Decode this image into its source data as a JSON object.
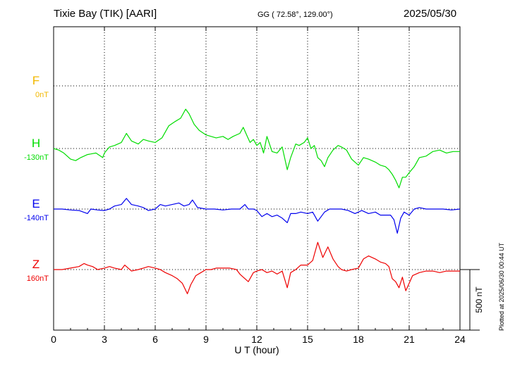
{
  "header": {
    "station": "Tixie Bay (TIK)  [AARI]",
    "coords": "GG ( 72.58°, 129.00°)",
    "date": "2025/05/30"
  },
  "plotted_note": "Plotted at 2025/06/30 00:44 UT",
  "colors": {
    "F": "#f2b800",
    "H": "#00dd00",
    "E": "#0000ee",
    "Z": "#ee0000",
    "axis": "#000000"
  },
  "chart_data": {
    "type": "line",
    "xlabel": "U T (hour)",
    "xlim": [
      0,
      24
    ],
    "x_ticks": [
      0,
      3,
      6,
      9,
      12,
      15,
      18,
      21,
      24
    ],
    "scale_bar": {
      "label": "500 nT",
      "value_nT": 500
    },
    "channels": [
      {
        "name": "F",
        "offset_label": "0nT",
        "color": "#f2b800",
        "values": []
      },
      {
        "name": "H",
        "offset_label": "-130nT",
        "color": "#00dd00",
        "points": [
          [
            0,
            0
          ],
          [
            0.3,
            -5
          ],
          [
            0.6,
            -15
          ],
          [
            1,
            -35
          ],
          [
            1.3,
            -40
          ],
          [
            1.6,
            -30
          ],
          [
            2,
            -20
          ],
          [
            2.5,
            -15
          ],
          [
            2.9,
            -30
          ],
          [
            3,
            -15
          ],
          [
            3.3,
            5
          ],
          [
            3.6,
            10
          ],
          [
            4,
            20
          ],
          [
            4.3,
            50
          ],
          [
            4.6,
            25
          ],
          [
            5,
            15
          ],
          [
            5.3,
            30
          ],
          [
            5.6,
            25
          ],
          [
            6,
            20
          ],
          [
            6.4,
            35
          ],
          [
            6.8,
            75
          ],
          [
            7.2,
            90
          ],
          [
            7.5,
            100
          ],
          [
            7.8,
            130
          ],
          [
            8,
            115
          ],
          [
            8.3,
            80
          ],
          [
            8.6,
            60
          ],
          [
            9,
            45
          ],
          [
            9.3,
            40
          ],
          [
            9.6,
            35
          ],
          [
            10,
            40
          ],
          [
            10.3,
            30
          ],
          [
            10.6,
            40
          ],
          [
            11,
            50
          ],
          [
            11.2,
            70
          ],
          [
            11.4,
            45
          ],
          [
            11.6,
            20
          ],
          [
            11.8,
            30
          ],
          [
            12,
            10
          ],
          [
            12.2,
            20
          ],
          [
            12.4,
            -15
          ],
          [
            12.6,
            40
          ],
          [
            12.9,
            -10
          ],
          [
            13.2,
            -15
          ],
          [
            13.5,
            5
          ],
          [
            13.8,
            -70
          ],
          [
            14,
            -30
          ],
          [
            14.3,
            15
          ],
          [
            14.5,
            10
          ],
          [
            14.8,
            20
          ],
          [
            15,
            35
          ],
          [
            15.2,
            0
          ],
          [
            15.4,
            10
          ],
          [
            15.6,
            -30
          ],
          [
            15.8,
            -40
          ],
          [
            16,
            -60
          ],
          [
            16.2,
            -30
          ],
          [
            16.5,
            -5
          ],
          [
            16.8,
            10
          ],
          [
            17,
            5
          ],
          [
            17.3,
            -5
          ],
          [
            17.6,
            -35
          ],
          [
            18,
            -55
          ],
          [
            18.3,
            -30
          ],
          [
            18.6,
            -35
          ],
          [
            19,
            -45
          ],
          [
            19.3,
            -55
          ],
          [
            19.6,
            -60
          ],
          [
            19.8,
            -70
          ],
          [
            20,
            -85
          ],
          [
            20.2,
            -105
          ],
          [
            20.4,
            -130
          ],
          [
            20.6,
            -95
          ],
          [
            20.8,
            -95
          ],
          [
            21,
            -80
          ],
          [
            21.3,
            -60
          ],
          [
            21.6,
            -30
          ],
          [
            22,
            -25
          ],
          [
            22.4,
            -10
          ],
          [
            22.8,
            -5
          ],
          [
            23.2,
            -15
          ],
          [
            23.6,
            -10
          ],
          [
            24,
            -10
          ]
        ]
      },
      {
        "name": "E",
        "offset_label": "-140nT",
        "color": "#0000ee",
        "points": [
          [
            0,
            0
          ],
          [
            0.5,
            0
          ],
          [
            1,
            -3
          ],
          [
            1.5,
            -5
          ],
          [
            2,
            -15
          ],
          [
            2.2,
            0
          ],
          [
            2.6,
            -3
          ],
          [
            3,
            -5
          ],
          [
            3.3,
            0
          ],
          [
            3.6,
            10
          ],
          [
            4,
            15
          ],
          [
            4.3,
            35
          ],
          [
            4.6,
            15
          ],
          [
            5,
            10
          ],
          [
            5.3,
            5
          ],
          [
            5.6,
            -5
          ],
          [
            6,
            0
          ],
          [
            6.3,
            15
          ],
          [
            6.6,
            10
          ],
          [
            7,
            15
          ],
          [
            7.4,
            20
          ],
          [
            7.7,
            10
          ],
          [
            8,
            15
          ],
          [
            8.2,
            30
          ],
          [
            8.5,
            5
          ],
          [
            9,
            0
          ],
          [
            9.5,
            0
          ],
          [
            10,
            -3
          ],
          [
            10.5,
            0
          ],
          [
            11,
            0
          ],
          [
            11.3,
            15
          ],
          [
            11.5,
            0
          ],
          [
            11.8,
            0
          ],
          [
            12,
            -5
          ],
          [
            12.3,
            -25
          ],
          [
            12.6,
            -15
          ],
          [
            12.9,
            -25
          ],
          [
            13.2,
            -20
          ],
          [
            13.5,
            -30
          ],
          [
            13.8,
            -45
          ],
          [
            14,
            -15
          ],
          [
            14.3,
            -15
          ],
          [
            14.6,
            -10
          ],
          [
            15,
            -15
          ],
          [
            15.3,
            -10
          ],
          [
            15.6,
            -40
          ],
          [
            15.8,
            -25
          ],
          [
            16,
            -10
          ],
          [
            16.3,
            0
          ],
          [
            16.6,
            0
          ],
          [
            17,
            0
          ],
          [
            17.4,
            -5
          ],
          [
            17.8,
            -15
          ],
          [
            18.2,
            -5
          ],
          [
            18.6,
            -15
          ],
          [
            19,
            -10
          ],
          [
            19.3,
            -20
          ],
          [
            19.6,
            -20
          ],
          [
            19.9,
            -20
          ],
          [
            20.1,
            -35
          ],
          [
            20.3,
            -80
          ],
          [
            20.5,
            -30
          ],
          [
            20.7,
            -10
          ],
          [
            21,
            -20
          ],
          [
            21.3,
            0
          ],
          [
            21.6,
            5
          ],
          [
            22,
            0
          ],
          [
            22.5,
            0
          ],
          [
            23,
            0
          ],
          [
            23.5,
            -3
          ],
          [
            24,
            0
          ]
        ]
      },
      {
        "name": "Z",
        "offset_label": "160nT",
        "color": "#ee0000",
        "points": [
          [
            0,
            0
          ],
          [
            0.5,
            0
          ],
          [
            1,
            5
          ],
          [
            1.5,
            10
          ],
          [
            1.8,
            20
          ],
          [
            2,
            15
          ],
          [
            2.3,
            10
          ],
          [
            2.6,
            0
          ],
          [
            3,
            5
          ],
          [
            3.3,
            10
          ],
          [
            3.6,
            5
          ],
          [
            4,
            0
          ],
          [
            4.2,
            15
          ],
          [
            4.6,
            -5
          ],
          [
            5,
            0
          ],
          [
            5.3,
            5
          ],
          [
            5.6,
            10
          ],
          [
            6,
            5
          ],
          [
            6.3,
            0
          ],
          [
            6.6,
            -10
          ],
          [
            7,
            -20
          ],
          [
            7.3,
            -30
          ],
          [
            7.6,
            -45
          ],
          [
            7.9,
            -80
          ],
          [
            8.1,
            -50
          ],
          [
            8.4,
            -20
          ],
          [
            8.7,
            -10
          ],
          [
            9,
            0
          ],
          [
            9.3,
            0
          ],
          [
            9.6,
            5
          ],
          [
            10,
            5
          ],
          [
            10.4,
            5
          ],
          [
            10.8,
            0
          ],
          [
            11,
            -15
          ],
          [
            11.2,
            -25
          ],
          [
            11.5,
            -40
          ],
          [
            11.8,
            -10
          ],
          [
            12,
            -5
          ],
          [
            12.3,
            0
          ],
          [
            12.6,
            -10
          ],
          [
            12.9,
            -5
          ],
          [
            13.2,
            -15
          ],
          [
            13.5,
            -5
          ],
          [
            13.8,
            -60
          ],
          [
            14,
            -10
          ],
          [
            14.3,
            0
          ],
          [
            14.6,
            15
          ],
          [
            15,
            15
          ],
          [
            15.3,
            30
          ],
          [
            15.6,
            90
          ],
          [
            15.9,
            40
          ],
          [
            16.2,
            75
          ],
          [
            16.5,
            35
          ],
          [
            16.8,
            10
          ],
          [
            17,
            0
          ],
          [
            17.3,
            -5
          ],
          [
            17.6,
            0
          ],
          [
            18,
            5
          ],
          [
            18.3,
            35
          ],
          [
            18.6,
            45
          ],
          [
            19,
            35
          ],
          [
            19.3,
            25
          ],
          [
            19.6,
            20
          ],
          [
            19.8,
            10
          ],
          [
            20,
            -30
          ],
          [
            20.2,
            -40
          ],
          [
            20.4,
            -60
          ],
          [
            20.6,
            -25
          ],
          [
            20.8,
            -70
          ],
          [
            21,
            -45
          ],
          [
            21.2,
            -20
          ],
          [
            21.6,
            -10
          ],
          [
            22,
            -5
          ],
          [
            22.4,
            -5
          ],
          [
            22.8,
            -10
          ],
          [
            23.2,
            -5
          ],
          [
            23.6,
            -5
          ],
          [
            24,
            -5
          ]
        ]
      }
    ]
  }
}
